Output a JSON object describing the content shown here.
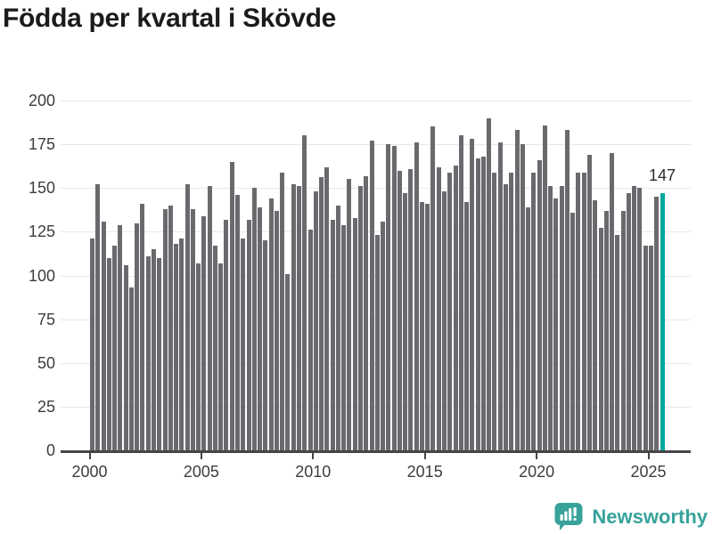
{
  "chart_data": {
    "type": "bar",
    "title": "Födda per kvartal i Skövde",
    "frequency": "quarterly",
    "period_start": "2000 Q1",
    "period_end": "2025 Q3",
    "values": [
      121,
      152,
      131,
      110,
      117,
      129,
      106,
      93,
      130,
      141,
      111,
      115,
      110,
      138,
      140,
      118,
      121,
      152,
      138,
      107,
      134,
      151,
      117,
      107,
      132,
      165,
      146,
      121,
      132,
      150,
      139,
      120,
      144,
      137,
      159,
      101,
      152,
      151,
      180,
      126,
      148,
      156,
      162,
      132,
      140,
      129,
      155,
      133,
      151,
      157,
      177,
      123,
      131,
      175,
      174,
      160,
      147,
      161,
      176,
      142,
      141,
      185,
      162,
      148,
      159,
      163,
      180,
      142,
      178,
      167,
      168,
      190,
      159,
      176,
      152,
      159,
      183,
      175,
      139,
      159,
      166,
      186,
      151,
      144,
      151,
      183,
      136,
      159,
      159,
      169,
      143,
      127,
      137,
      170,
      123,
      137,
      147,
      151,
      150,
      117,
      117,
      145,
      147
    ],
    "highlight_last": true,
    "highlight_value_label": "147",
    "x_tick_labels": [
      "2000",
      "2005",
      "2010",
      "2015",
      "2020",
      "2025"
    ],
    "y_ticks": [
      0,
      25,
      50,
      75,
      100,
      125,
      150,
      175,
      200
    ],
    "y_tick_labels": [
      "0",
      "25",
      "50",
      "75",
      "100",
      "125",
      "150",
      "175",
      "200"
    ],
    "ylim": [
      0,
      200
    ],
    "grid": true,
    "legend": "none",
    "bar_color": "#6a6a6e",
    "highlight_color": "#00a79b"
  },
  "branding": {
    "logo_text": "Newsworthy",
    "logo_color": "#38a39b",
    "logo_icon": "speech-bubble-with-bar-chart-and-exclamation"
  }
}
